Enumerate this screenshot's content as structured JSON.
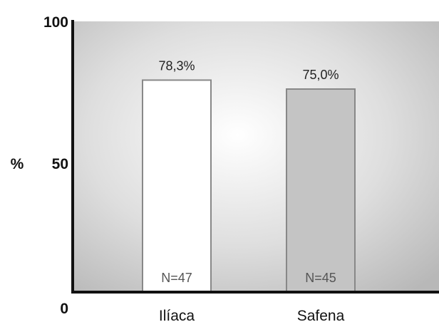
{
  "chart_data": {
    "type": "bar",
    "title": "",
    "xlabel": "",
    "ylabel": "%",
    "ylim": [
      0,
      100
    ],
    "yticks": [
      "0",
      "50",
      "100"
    ],
    "categories": [
      "Ilíaca",
      "Safena"
    ],
    "values": [
      78.3,
      75.0
    ],
    "value_labels": [
      "78,3%",
      "75,0%"
    ],
    "n_labels": [
      "N=47",
      "N=45"
    ],
    "bar_colors": [
      "#ffffff",
      "#c4c4c4"
    ],
    "grid": false,
    "legend": "none"
  },
  "colors": {
    "background_center": "#ffffff",
    "background_edge": "#b8b8b8",
    "axis": "#111111",
    "bar_edge": "#888888"
  }
}
